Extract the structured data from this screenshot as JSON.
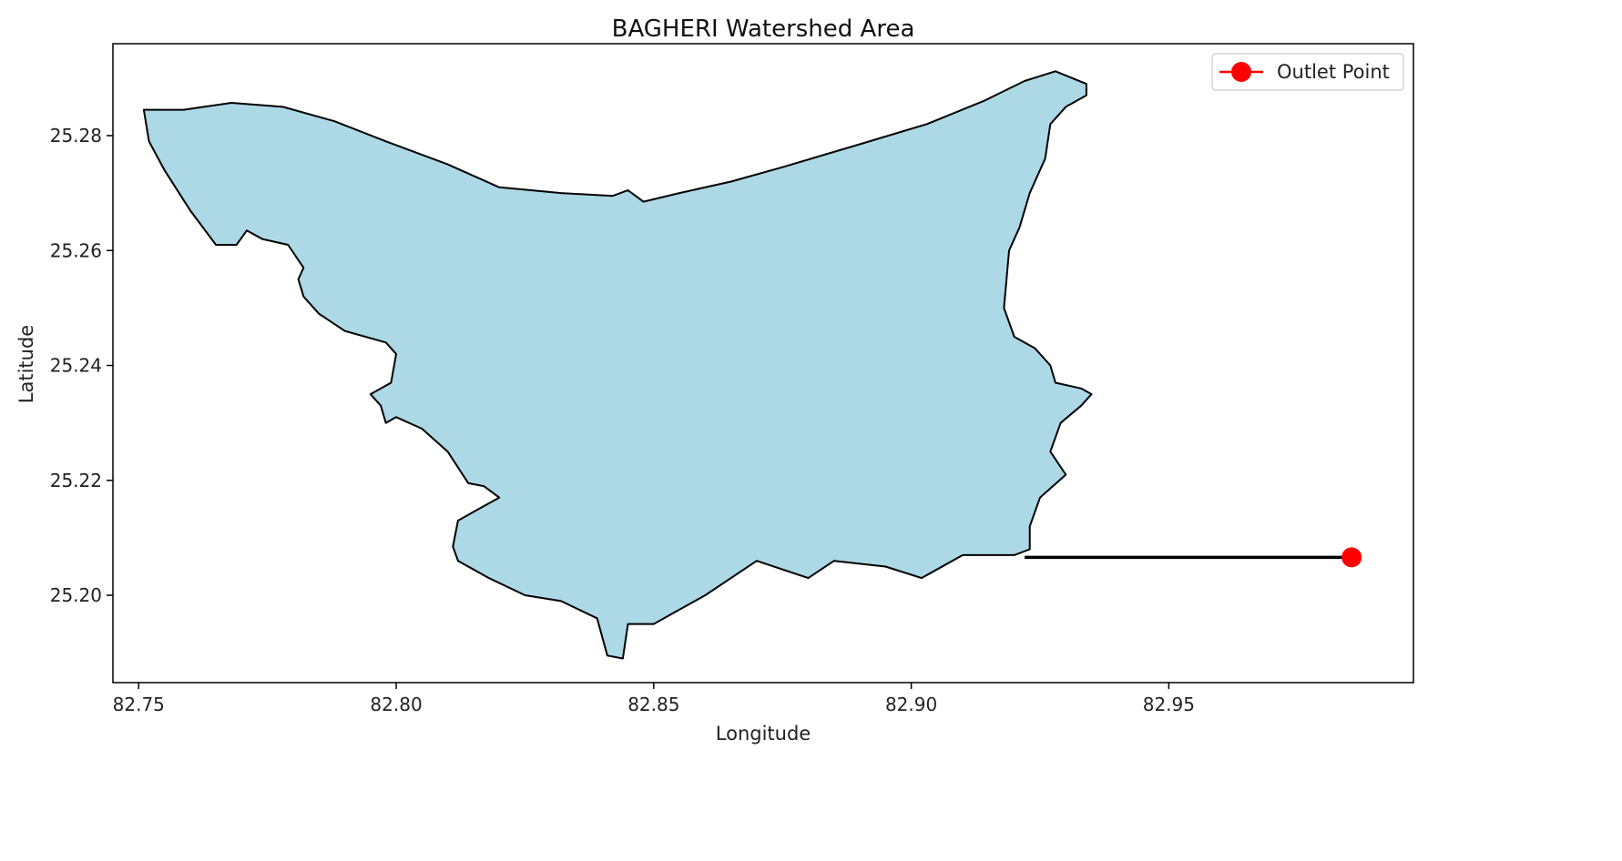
{
  "chart_data": {
    "type": "map",
    "title": "BAGHERI Watershed Area",
    "xlabel": "Longitude",
    "ylabel": "Latitude",
    "xlim": [
      82.745,
      82.9975
    ],
    "ylim": [
      25.1848,
      25.296
    ],
    "xticks": [
      82.75,
      82.8,
      82.85,
      82.9,
      82.95
    ],
    "xtick_labels": [
      "82.75",
      "82.80",
      "82.85",
      "82.90",
      "82.95"
    ],
    "yticks": [
      25.2,
      25.22,
      25.24,
      25.26,
      25.28
    ],
    "ytick_labels": [
      "25.20",
      "25.22",
      "25.24",
      "25.26",
      "25.28"
    ],
    "legend": {
      "placement": "top-right",
      "entries": [
        {
          "label": "Outlet Point",
          "color": "#ff0000",
          "marker": "circle"
        }
      ]
    },
    "watershed": {
      "fill_color": "#add8e6",
      "edge_color": "#000000",
      "boundary": [
        [
          82.7587,
          25.2845
        ],
        [
          82.768,
          25.2857
        ],
        [
          82.778,
          25.285
        ],
        [
          82.788,
          25.2825
        ],
        [
          82.798,
          25.279
        ],
        [
          82.81,
          25.275
        ],
        [
          82.82,
          25.271
        ],
        [
          82.832,
          25.27
        ],
        [
          82.842,
          25.2695
        ],
        [
          82.845,
          25.2705
        ],
        [
          82.848,
          25.2685
        ],
        [
          82.855,
          25.27
        ],
        [
          82.865,
          25.272
        ],
        [
          82.875,
          25.2745
        ],
        [
          82.89,
          25.2785
        ],
        [
          82.903,
          25.282
        ],
        [
          82.914,
          25.286
        ],
        [
          82.922,
          25.2895
        ],
        [
          82.928,
          25.2912
        ],
        [
          82.934,
          25.289
        ],
        [
          82.934,
          25.287
        ],
        [
          82.93,
          25.285
        ],
        [
          82.927,
          25.282
        ],
        [
          82.926,
          25.276
        ],
        [
          82.923,
          25.27
        ],
        [
          82.921,
          25.264
        ],
        [
          82.919,
          25.26
        ],
        [
          82.918,
          25.25
        ],
        [
          82.92,
          25.245
        ],
        [
          82.924,
          25.243
        ],
        [
          82.927,
          25.24
        ],
        [
          82.928,
          25.237
        ],
        [
          82.933,
          25.236
        ],
        [
          82.935,
          25.235
        ],
        [
          82.933,
          25.233
        ],
        [
          82.929,
          25.23
        ],
        [
          82.927,
          25.225
        ],
        [
          82.93,
          25.221
        ],
        [
          82.925,
          25.217
        ],
        [
          82.923,
          25.212
        ],
        [
          82.923,
          25.208
        ],
        [
          82.92,
          25.207
        ],
        [
          82.91,
          25.207
        ],
        [
          82.902,
          25.203
        ],
        [
          82.895,
          25.205
        ],
        [
          82.885,
          25.206
        ],
        [
          82.88,
          25.203
        ],
        [
          82.87,
          25.206
        ],
        [
          82.86,
          25.2
        ],
        [
          82.855,
          25.1975
        ],
        [
          82.85,
          25.195
        ],
        [
          82.845,
          25.195
        ],
        [
          82.844,
          25.189
        ],
        [
          82.841,
          25.1895
        ],
        [
          82.839,
          25.196
        ],
        [
          82.832,
          25.199
        ],
        [
          82.825,
          25.2
        ],
        [
          82.818,
          25.203
        ],
        [
          82.812,
          25.206
        ],
        [
          82.811,
          25.2085
        ],
        [
          82.812,
          25.213
        ],
        [
          82.816,
          25.215
        ],
        [
          82.82,
          25.217
        ],
        [
          82.817,
          25.219
        ],
        [
          82.814,
          25.2195
        ],
        [
          82.81,
          25.225
        ],
        [
          82.805,
          25.229
        ],
        [
          82.8,
          25.231
        ],
        [
          82.798,
          25.23
        ],
        [
          82.797,
          25.233
        ],
        [
          82.795,
          25.235
        ],
        [
          82.799,
          25.237
        ],
        [
          82.8,
          25.242
        ],
        [
          82.798,
          25.244
        ],
        [
          82.79,
          25.246
        ],
        [
          82.785,
          25.249
        ],
        [
          82.782,
          25.252
        ],
        [
          82.781,
          25.255
        ],
        [
          82.782,
          25.257
        ],
        [
          82.779,
          25.261
        ],
        [
          82.774,
          25.262
        ],
        [
          82.771,
          25.2635
        ],
        [
          82.769,
          25.261
        ],
        [
          82.765,
          25.261
        ],
        [
          82.76,
          25.267
        ],
        [
          82.755,
          25.274
        ],
        [
          82.752,
          25.279
        ],
        [
          82.751,
          25.2845
        ]
      ]
    },
    "outlet_point": {
      "label": "Outlet Point",
      "x": 82.9855,
      "y": 25.2066,
      "color": "#ff0000"
    },
    "connector": {
      "x1": 82.922,
      "y1": 25.2066,
      "x2": 82.9855,
      "y2": 25.2066,
      "color": "#000000"
    },
    "grid": false
  }
}
